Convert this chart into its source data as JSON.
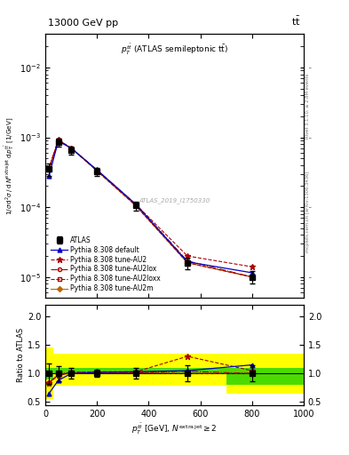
{
  "title_left": "13000 GeV pp",
  "title_right": "tt̅",
  "plot_label": "p$_T^{t\\bar{t}}$ (ATLAS semileptonic ttbar)",
  "watermark": "ATLAS_2019_I1750330",
  "right_label_top": "Rivet 3.1.10, ≥ 2.8M events",
  "right_label_bottom": "mcplots.cern.ch [arXiv:1306.3436]",
  "xlabel": "p$_T^{\\bar{t}\\{t\\}}$ [GeV], N$^{\\mathrm{extra\\,jet}}$ ≥ 2",
  "ylabel_main": "1/σ d²σ / d N$^{\\mathrm{extra\\,jet}}$ d p$_T^{\\bar{t}\\{t\\}}$ [1/GeV]",
  "ylabel_ratio": "Ratio to ATLAS",
  "x_points": [
    14,
    50,
    100,
    200,
    350,
    550,
    800
  ],
  "atlas_y": [
    0.00035,
    0.00085,
    0.00065,
    0.00032,
    0.000105,
    1.6e-05,
    1e-05
  ],
  "atlas_yerr": [
    7e-05,
    0.00012,
    8e-05,
    4e-05,
    1.5e-05,
    3e-06,
    2e-06
  ],
  "py_default_y": [
    0.00028,
    0.00088,
    0.0007,
    0.00034,
    0.00011,
    1.65e-05,
    1.15e-05
  ],
  "py_au2_y": [
    0.00036,
    0.00092,
    0.0007,
    0.00034,
    0.00011,
    2e-05,
    1.4e-05
  ],
  "py_au2lox_y": [
    0.00036,
    0.00092,
    0.0007,
    0.00034,
    0.00011,
    1.7e-05,
    1e-05
  ],
  "py_au2loxx_y": [
    0.00034,
    0.0009,
    0.0007,
    0.00033,
    0.000105,
    1.6e-05,
    1e-05
  ],
  "py_au2m_y": [
    0.00035,
    0.0009,
    0.0007,
    0.00033,
    0.000105,
    1.6e-05,
    1e-05
  ],
  "ratio_default": [
    0.65,
    0.88,
    1.0,
    1.02,
    1.03,
    1.05,
    1.15
  ],
  "ratio_au2": [
    0.83,
    0.98,
    1.02,
    1.03,
    1.03,
    1.3,
    1.05
  ],
  "ratio_au2lox": [
    0.84,
    0.99,
    1.02,
    1.02,
    1.02,
    1.04,
    1.0
  ],
  "ratio_au2loxx": [
    0.83,
    0.97,
    1.01,
    1.01,
    1.01,
    1.0,
    1.0
  ],
  "ratio_au2m": [
    0.84,
    0.97,
    1.01,
    1.01,
    1.01,
    1.0,
    1.0
  ],
  "atlas_ratio_err": [
    0.18,
    0.13,
    0.09,
    0.06,
    0.09,
    0.14,
    0.14
  ],
  "band_x": [
    0,
    30,
    150,
    450,
    700,
    1000
  ],
  "yellow_lo": [
    0.55,
    0.78,
    0.78,
    0.78,
    0.65,
    0.65
  ],
  "yellow_hi": [
    1.45,
    1.35,
    1.35,
    1.35,
    1.35,
    1.35
  ],
  "green_lo": [
    0.9,
    1.0,
    1.0,
    1.0,
    0.8,
    0.8
  ],
  "green_hi": [
    1.1,
    1.1,
    1.1,
    1.1,
    1.1,
    1.1
  ],
  "color_atlas": "#000000",
  "color_default": "#0000cc",
  "color_au2": "#aa0000",
  "color_au2lox": "#aa0000",
  "color_au2loxx": "#aa0000",
  "color_au2m": "#bb6600",
  "ylim_main": [
    5e-06,
    0.03
  ],
  "ylim_ratio": [
    0.45,
    2.2
  ],
  "xlim": [
    0,
    1000
  ]
}
